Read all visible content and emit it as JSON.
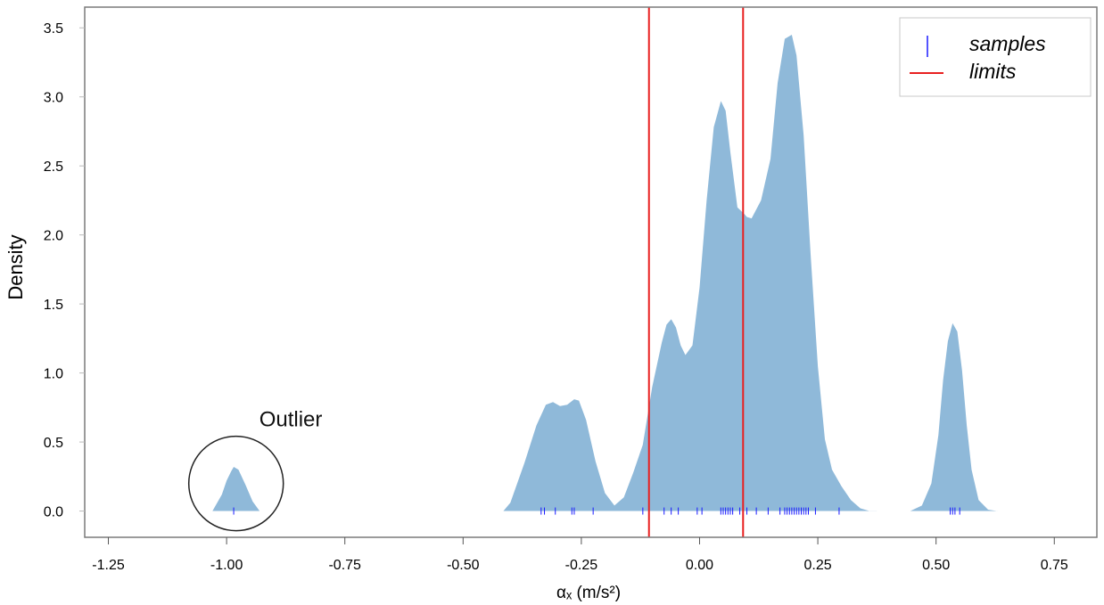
{
  "chart_data": {
    "type": "area",
    "xlabel": "αₓ (m/s²)",
    "ylabel": "Density",
    "xlim": [
      -1.3,
      0.84
    ],
    "ylim": [
      -0.19,
      3.65
    ],
    "xticks": [
      -1.25,
      -1.0,
      -0.75,
      -0.5,
      -0.25,
      0.0,
      0.25,
      0.5,
      0.75
    ],
    "xtick_labels": [
      "-1.25",
      "-1.00",
      "-0.75",
      "-0.50",
      "-0.25",
      "0.00",
      "0.25",
      "0.50",
      "0.75"
    ],
    "yticks": [
      0.0,
      0.5,
      1.0,
      1.5,
      2.0,
      2.5,
      3.0,
      3.5
    ],
    "ytick_labels": [
      "0.0",
      "0.5",
      "1.0",
      "1.5",
      "2.0",
      "2.5",
      "3.0",
      "3.5"
    ],
    "grid": false,
    "legend_position": "top-right",
    "density": {
      "name": "",
      "color": "#8fb9d9",
      "x": [
        -1.03,
        -1.01,
        -1.0,
        -0.99,
        -0.985,
        -0.975,
        -0.96,
        -0.945,
        -0.93,
        -0.415,
        -0.4,
        -0.37,
        -0.345,
        -0.325,
        -0.31,
        -0.295,
        -0.28,
        -0.265,
        -0.255,
        -0.24,
        -0.22,
        -0.2,
        -0.18,
        -0.16,
        -0.14,
        -0.12,
        -0.1,
        -0.08,
        -0.07,
        -0.06,
        -0.05,
        -0.04,
        -0.03,
        -0.015,
        0.0,
        0.015,
        0.03,
        0.045,
        0.055,
        0.065,
        0.08,
        0.095,
        0.1,
        0.11,
        0.13,
        0.15,
        0.165,
        0.18,
        0.195,
        0.205,
        0.22,
        0.235,
        0.25,
        0.265,
        0.28,
        0.3,
        0.32,
        0.34,
        0.36,
        0.375,
        0.445,
        0.47,
        0.49,
        0.505,
        0.515,
        0.525,
        0.535,
        0.545,
        0.555,
        0.565,
        0.575,
        0.59,
        0.61,
        0.63
      ],
      "y": [
        0.0,
        0.12,
        0.22,
        0.29,
        0.32,
        0.3,
        0.19,
        0.07,
        0.0,
        0.0,
        0.06,
        0.35,
        0.62,
        0.77,
        0.79,
        0.76,
        0.77,
        0.81,
        0.8,
        0.66,
        0.36,
        0.13,
        0.04,
        0.1,
        0.28,
        0.48,
        0.9,
        1.22,
        1.35,
        1.39,
        1.33,
        1.2,
        1.13,
        1.2,
        1.62,
        2.25,
        2.78,
        2.97,
        2.9,
        2.6,
        2.2,
        2.15,
        2.13,
        2.12,
        2.25,
        2.55,
        3.1,
        3.42,
        3.45,
        3.3,
        2.72,
        1.85,
        1.05,
        0.52,
        0.3,
        0.18,
        0.08,
        0.02,
        0.0,
        0.0,
        0.0,
        0.04,
        0.2,
        0.55,
        0.95,
        1.23,
        1.36,
        1.3,
        1.02,
        0.62,
        0.3,
        0.08,
        0.01,
        0.0
      ]
    },
    "segments": [
      {
        "from": -1.03,
        "to": -0.93
      },
      {
        "from": -0.415,
        "to": 0.375
      },
      {
        "from": 0.445,
        "to": 0.63
      }
    ],
    "samples": {
      "name": "samples",
      "color": "#1a1aff",
      "x": [
        -0.985,
        -0.335,
        -0.328,
        -0.305,
        -0.27,
        -0.265,
        -0.225,
        -0.12,
        -0.075,
        -0.06,
        -0.045,
        -0.005,
        0.005,
        0.045,
        0.05,
        0.055,
        0.06,
        0.065,
        0.07,
        0.085,
        0.1,
        0.12,
        0.145,
        0.17,
        0.18,
        0.185,
        0.19,
        0.195,
        0.2,
        0.205,
        0.21,
        0.215,
        0.22,
        0.225,
        0.23,
        0.245,
        0.295,
        0.53,
        0.535,
        0.54,
        0.55
      ]
    },
    "limits": {
      "name": "limits",
      "color": "#e82020",
      "x": [
        -0.107,
        0.092
      ]
    },
    "legend": [
      {
        "label": "samples",
        "kind": "tick",
        "color": "#1a1aff"
      },
      {
        "label": "limits",
        "kind": "line",
        "color": "#e82020"
      }
    ],
    "annotations": [
      {
        "text": "Outlier",
        "x": -0.98,
        "y": 0.2
      }
    ]
  }
}
